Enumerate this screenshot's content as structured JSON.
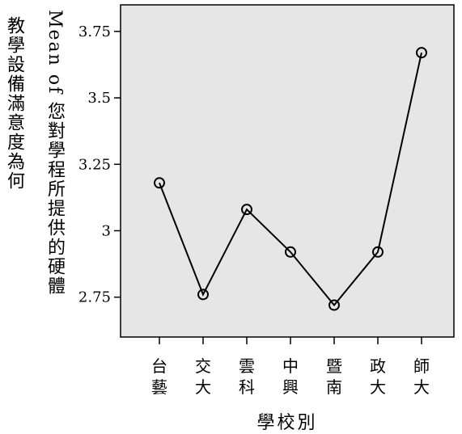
{
  "chart_data": {
    "type": "line",
    "categories": [
      [
        "台",
        "藝"
      ],
      [
        "交",
        "大"
      ],
      [
        "雲",
        "科"
      ],
      [
        "中",
        "興"
      ],
      [
        "暨",
        "南"
      ],
      [
        "政",
        "大"
      ],
      [
        "師",
        "大"
      ]
    ],
    "values": [
      3.18,
      2.76,
      3.08,
      2.92,
      2.72,
      2.92,
      3.67
    ],
    "ylim": [
      2.6,
      3.85
    ],
    "yticks": [
      "3.75",
      "3.5",
      "3.25",
      "3",
      "2.75"
    ],
    "ytick_values": [
      3.75,
      3.5,
      3.25,
      3,
      2.75
    ],
    "ylabel": {
      "col1": "Mean of 您對學程所提供的硬體",
      "col2": "教學設備滿意度為何"
    },
    "xlabel": "學校別",
    "plot_background": "#e6e6e6",
    "line_color": "#000000",
    "marker": "open-circle",
    "grid": false,
    "legend": "none"
  }
}
